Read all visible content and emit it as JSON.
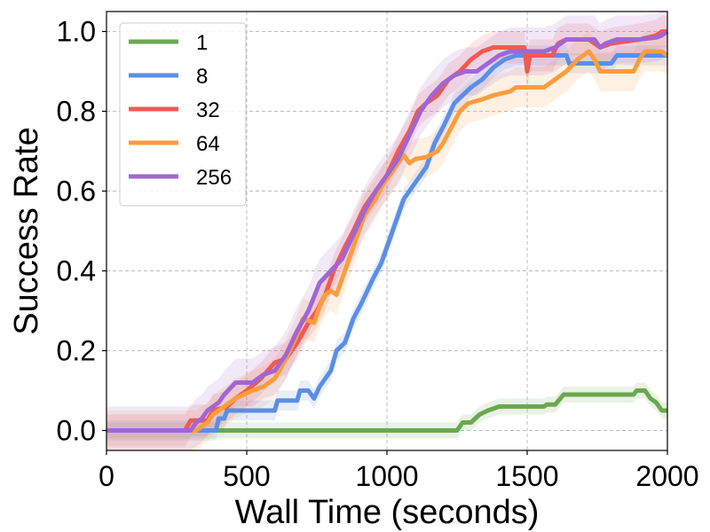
{
  "chart_data": {
    "type": "line",
    "title": "",
    "xlabel": "Wall Time (seconds)",
    "ylabel": "Success Rate",
    "xlim": [
      0,
      2000
    ],
    "ylim": [
      -0.05,
      1.05
    ],
    "xticks": [
      0,
      500,
      1000,
      1500,
      2000
    ],
    "xtick_labels": [
      "0",
      "500",
      "1000",
      "1500",
      "2000"
    ],
    "yticks": [
      0.0,
      0.2,
      0.4,
      0.6,
      0.8,
      1.0
    ],
    "ytick_labels": [
      "0.0",
      "0.2",
      "0.4",
      "0.6",
      "0.8",
      "1.0"
    ],
    "grid": true,
    "legend_position": "upper-left",
    "series": [
      {
        "name": "1",
        "color": "#6aa84f",
        "band": 0.02,
        "points": [
          [
            0,
            0
          ],
          [
            1250,
            0
          ],
          [
            1270,
            0.02
          ],
          [
            1300,
            0.02
          ],
          [
            1330,
            0.04
          ],
          [
            1360,
            0.05
          ],
          [
            1400,
            0.06
          ],
          [
            1560,
            0.06
          ],
          [
            1570,
            0.065
          ],
          [
            1600,
            0.065
          ],
          [
            1630,
            0.09
          ],
          [
            1880,
            0.09
          ],
          [
            1890,
            0.1
          ],
          [
            1920,
            0.1
          ],
          [
            1940,
            0.08
          ],
          [
            1960,
            0.07
          ],
          [
            1980,
            0.05
          ],
          [
            2000,
            0.05
          ]
        ]
      },
      {
        "name": "8",
        "color": "#5b8ee6",
        "band": 0.025,
        "points": [
          [
            0,
            0
          ],
          [
            390,
            0
          ],
          [
            400,
            0.03
          ],
          [
            420,
            0.03
          ],
          [
            430,
            0.05
          ],
          [
            600,
            0.05
          ],
          [
            610,
            0.075
          ],
          [
            680,
            0.075
          ],
          [
            690,
            0.1
          ],
          [
            720,
            0.1
          ],
          [
            740,
            0.08
          ],
          [
            760,
            0.11
          ],
          [
            800,
            0.15
          ],
          [
            820,
            0.2
          ],
          [
            850,
            0.22
          ],
          [
            880,
            0.28
          ],
          [
            910,
            0.32
          ],
          [
            950,
            0.38
          ],
          [
            980,
            0.42
          ],
          [
            1020,
            0.5
          ],
          [
            1060,
            0.58
          ],
          [
            1100,
            0.62
          ],
          [
            1140,
            0.66
          ],
          [
            1170,
            0.72
          ],
          [
            1200,
            0.76
          ],
          [
            1240,
            0.82
          ],
          [
            1270,
            0.84
          ],
          [
            1300,
            0.86
          ],
          [
            1340,
            0.88
          ],
          [
            1380,
            0.91
          ],
          [
            1420,
            0.93
          ],
          [
            1460,
            0.94
          ],
          [
            1640,
            0.94
          ],
          [
            1650,
            0.92
          ],
          [
            1800,
            0.92
          ],
          [
            1820,
            0.94
          ],
          [
            2000,
            0.94
          ]
        ]
      },
      {
        "name": "32",
        "color": "#f05a50",
        "band": 0.04,
        "points": [
          [
            0,
            0
          ],
          [
            280,
            0
          ],
          [
            300,
            0.025
          ],
          [
            360,
            0.025
          ],
          [
            380,
            0.05
          ],
          [
            430,
            0.06
          ],
          [
            460,
            0.08
          ],
          [
            500,
            0.1
          ],
          [
            550,
            0.13
          ],
          [
            600,
            0.17
          ],
          [
            640,
            0.18
          ],
          [
            680,
            0.22
          ],
          [
            720,
            0.27
          ],
          [
            750,
            0.3
          ],
          [
            780,
            0.34
          ],
          [
            810,
            0.4
          ],
          [
            850,
            0.46
          ],
          [
            880,
            0.5
          ],
          [
            920,
            0.56
          ],
          [
            960,
            0.6
          ],
          [
            1000,
            0.64
          ],
          [
            1040,
            0.7
          ],
          [
            1080,
            0.75
          ],
          [
            1110,
            0.8
          ],
          [
            1140,
            0.82
          ],
          [
            1180,
            0.84
          ],
          [
            1220,
            0.88
          ],
          [
            1260,
            0.9
          ],
          [
            1300,
            0.93
          ],
          [
            1340,
            0.95
          ],
          [
            1380,
            0.96
          ],
          [
            1490,
            0.96
          ],
          [
            1500,
            0.9
          ],
          [
            1510,
            0.94
          ],
          [
            1590,
            0.94
          ],
          [
            1610,
            0.97
          ],
          [
            1640,
            0.98
          ],
          [
            1720,
            0.98
          ],
          [
            1740,
            0.97
          ],
          [
            1760,
            0.96
          ],
          [
            1800,
            0.97
          ],
          [
            1900,
            0.98
          ],
          [
            1930,
            0.985
          ],
          [
            1960,
            0.99
          ],
          [
            1980,
            1.0
          ],
          [
            2000,
            1.0
          ]
        ]
      },
      {
        "name": "64",
        "color": "#fb9d3c",
        "band": 0.05,
        "points": [
          [
            0,
            0
          ],
          [
            320,
            0
          ],
          [
            340,
            0.01
          ],
          [
            360,
            0.02
          ],
          [
            380,
            0.04
          ],
          [
            420,
            0.06
          ],
          [
            460,
            0.08
          ],
          [
            520,
            0.1
          ],
          [
            560,
            0.11
          ],
          [
            600,
            0.13
          ],
          [
            640,
            0.18
          ],
          [
            680,
            0.24
          ],
          [
            700,
            0.28
          ],
          [
            740,
            0.27
          ],
          [
            760,
            0.31
          ],
          [
            780,
            0.34
          ],
          [
            800,
            0.35
          ],
          [
            820,
            0.34
          ],
          [
            840,
            0.38
          ],
          [
            860,
            0.42
          ],
          [
            880,
            0.46
          ],
          [
            900,
            0.5
          ],
          [
            920,
            0.54
          ],
          [
            940,
            0.56
          ],
          [
            960,
            0.58
          ],
          [
            980,
            0.61
          ],
          [
            1000,
            0.63
          ],
          [
            1030,
            0.66
          ],
          [
            1060,
            0.69
          ],
          [
            1080,
            0.67
          ],
          [
            1100,
            0.68
          ],
          [
            1140,
            0.685
          ],
          [
            1180,
            0.7
          ],
          [
            1200,
            0.72
          ],
          [
            1230,
            0.76
          ],
          [
            1260,
            0.8
          ],
          [
            1290,
            0.82
          ],
          [
            1340,
            0.83
          ],
          [
            1380,
            0.84
          ],
          [
            1440,
            0.85
          ],
          [
            1460,
            0.86
          ],
          [
            1560,
            0.86
          ],
          [
            1600,
            0.88
          ],
          [
            1640,
            0.9
          ],
          [
            1680,
            0.93
          ],
          [
            1700,
            0.94
          ],
          [
            1720,
            0.95
          ],
          [
            1740,
            0.93
          ],
          [
            1760,
            0.9
          ],
          [
            1880,
            0.9
          ],
          [
            1900,
            0.93
          ],
          [
            1920,
            0.95
          ],
          [
            1980,
            0.95
          ],
          [
            2000,
            0.94
          ]
        ]
      },
      {
        "name": "256",
        "color": "#a066d3",
        "band": 0.06,
        "points": [
          [
            0,
            0
          ],
          [
            300,
            0
          ],
          [
            320,
            0.02
          ],
          [
            340,
            0.03
          ],
          [
            360,
            0.05
          ],
          [
            400,
            0.07
          ],
          [
            420,
            0.09
          ],
          [
            460,
            0.12
          ],
          [
            520,
            0.12
          ],
          [
            560,
            0.14
          ],
          [
            600,
            0.15
          ],
          [
            640,
            0.19
          ],
          [
            680,
            0.25
          ],
          [
            720,
            0.3
          ],
          [
            760,
            0.37
          ],
          [
            800,
            0.4
          ],
          [
            840,
            0.43
          ],
          [
            880,
            0.49
          ],
          [
            920,
            0.55
          ],
          [
            960,
            0.6
          ],
          [
            1000,
            0.64
          ],
          [
            1040,
            0.68
          ],
          [
            1080,
            0.74
          ],
          [
            1120,
            0.8
          ],
          [
            1160,
            0.84
          ],
          [
            1200,
            0.87
          ],
          [
            1240,
            0.89
          ],
          [
            1280,
            0.9
          ],
          [
            1320,
            0.9
          ],
          [
            1360,
            0.92
          ],
          [
            1400,
            0.94
          ],
          [
            1440,
            0.95
          ],
          [
            1500,
            0.95
          ],
          [
            1560,
            0.95
          ],
          [
            1600,
            0.96
          ],
          [
            1640,
            0.98
          ],
          [
            1680,
            0.98
          ],
          [
            1740,
            0.98
          ],
          [
            1760,
            0.96
          ],
          [
            1780,
            0.97
          ],
          [
            1820,
            0.98
          ],
          [
            1900,
            0.98
          ],
          [
            1960,
            0.985
          ],
          [
            1980,
            0.99
          ],
          [
            2000,
            1.0
          ]
        ]
      }
    ]
  }
}
